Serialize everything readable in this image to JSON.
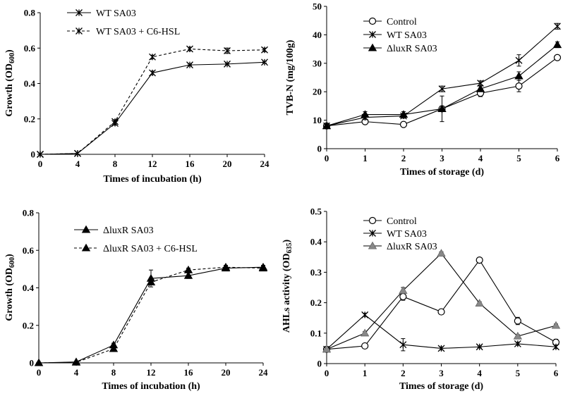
{
  "chart_data": [
    {
      "type": "line",
      "panel": "top-left",
      "xlabel": "Times of incubation (h)",
      "ylabel": "Growth (OD600)",
      "ylabel_main": "Growth  (OD",
      "ylabel_sub": "600",
      "ylabel_end": ")",
      "x": [
        0,
        4,
        8,
        12,
        16,
        20,
        24
      ],
      "xticks": [
        "0",
        "4",
        "8",
        "12",
        "16",
        "20",
        "24"
      ],
      "yticks": [
        "0",
        "0.2",
        "0.4",
        "0.6",
        "0.8"
      ],
      "xlim": [
        0,
        24
      ],
      "ylim": [
        0,
        0.8
      ],
      "legend_position": "top-left",
      "series": [
        {
          "name": "WT SA03",
          "marker": "star",
          "dash": "solid",
          "values": [
            0,
            0.005,
            0.175,
            0.46,
            0.505,
            0.51,
            0.52
          ],
          "errors": [
            0,
            0,
            0.01,
            0.01,
            0.005,
            0.005,
            0.005
          ]
        },
        {
          "name": "WT SA03 + C6-HSL",
          "marker": "star",
          "dash": "dashed",
          "values": [
            0,
            0.005,
            0.185,
            0.55,
            0.595,
            0.585,
            0.59
          ],
          "errors": [
            0,
            0,
            0.01,
            0.01,
            0.01,
            0.015,
            0.01
          ]
        }
      ]
    },
    {
      "type": "line",
      "panel": "top-right",
      "xlabel": "Times of storage (d)",
      "ylabel": "TVB-N (mg/100g)",
      "ylabel_main": "TVB-N  (mg/100g)",
      "ylabel_sub": "",
      "ylabel_end": "",
      "x": [
        0,
        1,
        2,
        3,
        4,
        5,
        6
      ],
      "xticks": [
        "0",
        "1",
        "2",
        "3",
        "4",
        "5",
        "6"
      ],
      "yticks": [
        "0",
        "10",
        "20",
        "30",
        "40",
        "50"
      ],
      "xlim": [
        0,
        6
      ],
      "ylim": [
        0,
        50
      ],
      "legend_position": "top-left",
      "series": [
        {
          "name": "Control",
          "marker": "circle",
          "dash": "solid",
          "values": [
            8,
            9.5,
            8.5,
            14,
            19.5,
            22,
            32
          ],
          "errors": [
            0.5,
            0.5,
            0.8,
            1,
            1.2,
            2,
            0.5
          ]
        },
        {
          "name": "WT SA03",
          "marker": "star",
          "dash": "solid",
          "values": [
            8,
            11,
            11.5,
            21,
            23,
            31,
            43
          ],
          "errors": [
            0.5,
            0.8,
            0.8,
            1,
            0.8,
            2,
            1
          ]
        },
        {
          "name": "ΔluxR SA03",
          "marker": "triangle",
          "dash": "solid",
          "values": [
            8,
            12,
            12,
            14,
            21,
            25.5,
            36.5
          ],
          "errors": [
            0.5,
            1,
            1,
            4.5,
            1,
            1.5,
            1
          ]
        }
      ]
    },
    {
      "type": "line",
      "panel": "bottom-left",
      "xlabel": "Times of incubation (h)",
      "ylabel": "Growth (OD600)",
      "ylabel_main": "Growth  (OD",
      "ylabel_sub": "600",
      "ylabel_end": ")",
      "x": [
        0,
        4,
        8,
        12,
        16,
        20,
        24
      ],
      "xticks": [
        "0",
        "4",
        "8",
        "12",
        "16",
        "20",
        "24"
      ],
      "yticks": [
        "0",
        "0.2",
        "0.4",
        "0.6",
        "0.8"
      ],
      "xlim": [
        0,
        24
      ],
      "ylim": [
        0,
        0.8
      ],
      "legend_position": "top-left",
      "series": [
        {
          "name": "ΔluxR SA03",
          "marker": "triangle",
          "dash": "solid",
          "values": [
            0,
            0.005,
            0.095,
            0.45,
            0.465,
            0.505,
            0.51
          ],
          "errors": [
            0,
            0,
            0.01,
            0.045,
            0.015,
            0.01,
            0.01
          ]
        },
        {
          "name": "ΔluxR SA03 + C6-HSL",
          "marker": "triangle",
          "dash": "dashed",
          "values": [
            0,
            0.003,
            0.075,
            0.43,
            0.495,
            0.51,
            0.505
          ],
          "errors": [
            0,
            0,
            0.01,
            0.01,
            0.01,
            0.01,
            0.01
          ]
        }
      ]
    },
    {
      "type": "line",
      "panel": "bottom-right",
      "xlabel": "Times of storage (d)",
      "ylabel": "AHLs activity (OD635)",
      "ylabel_main": "AHLs  activity  (OD",
      "ylabel_sub": "635",
      "ylabel_end": ")",
      "x": [
        0,
        1,
        2,
        3,
        4,
        5,
        6
      ],
      "xticks": [
        "0",
        "1",
        "2",
        "3",
        "4",
        "5",
        "6"
      ],
      "yticks": [
        "0",
        "0.1",
        "0.2",
        "0.3",
        "0.4",
        "0.5"
      ],
      "xlim": [
        0,
        6
      ],
      "ylim": [
        0,
        0.5
      ],
      "legend_position": "top-left",
      "series": [
        {
          "name": "Control",
          "marker": "circle",
          "dash": "solid",
          "values": [
            0.047,
            0.058,
            0.22,
            0.17,
            0.34,
            0.14,
            0.07
          ],
          "errors": [
            0.003,
            0.003,
            0.012,
            0.005,
            0.005,
            0.012,
            0.01
          ]
        },
        {
          "name": "WT SA03",
          "marker": "star",
          "dash": "solid",
          "values": [
            0.047,
            0.16,
            0.062,
            0.05,
            0.055,
            0.065,
            0.055
          ],
          "errors": [
            0.003,
            0.005,
            0.02,
            0.005,
            0.003,
            0.005,
            0.005
          ]
        },
        {
          "name": "ΔluxR SA03",
          "marker": "triangle-gray",
          "dash": "solid",
          "values": [
            0.047,
            0.1,
            0.24,
            0.362,
            0.198,
            0.09,
            0.125
          ],
          "errors": [
            0.003,
            0.005,
            0.01,
            0.005,
            0.005,
            0.005,
            0.005
          ]
        }
      ]
    }
  ]
}
